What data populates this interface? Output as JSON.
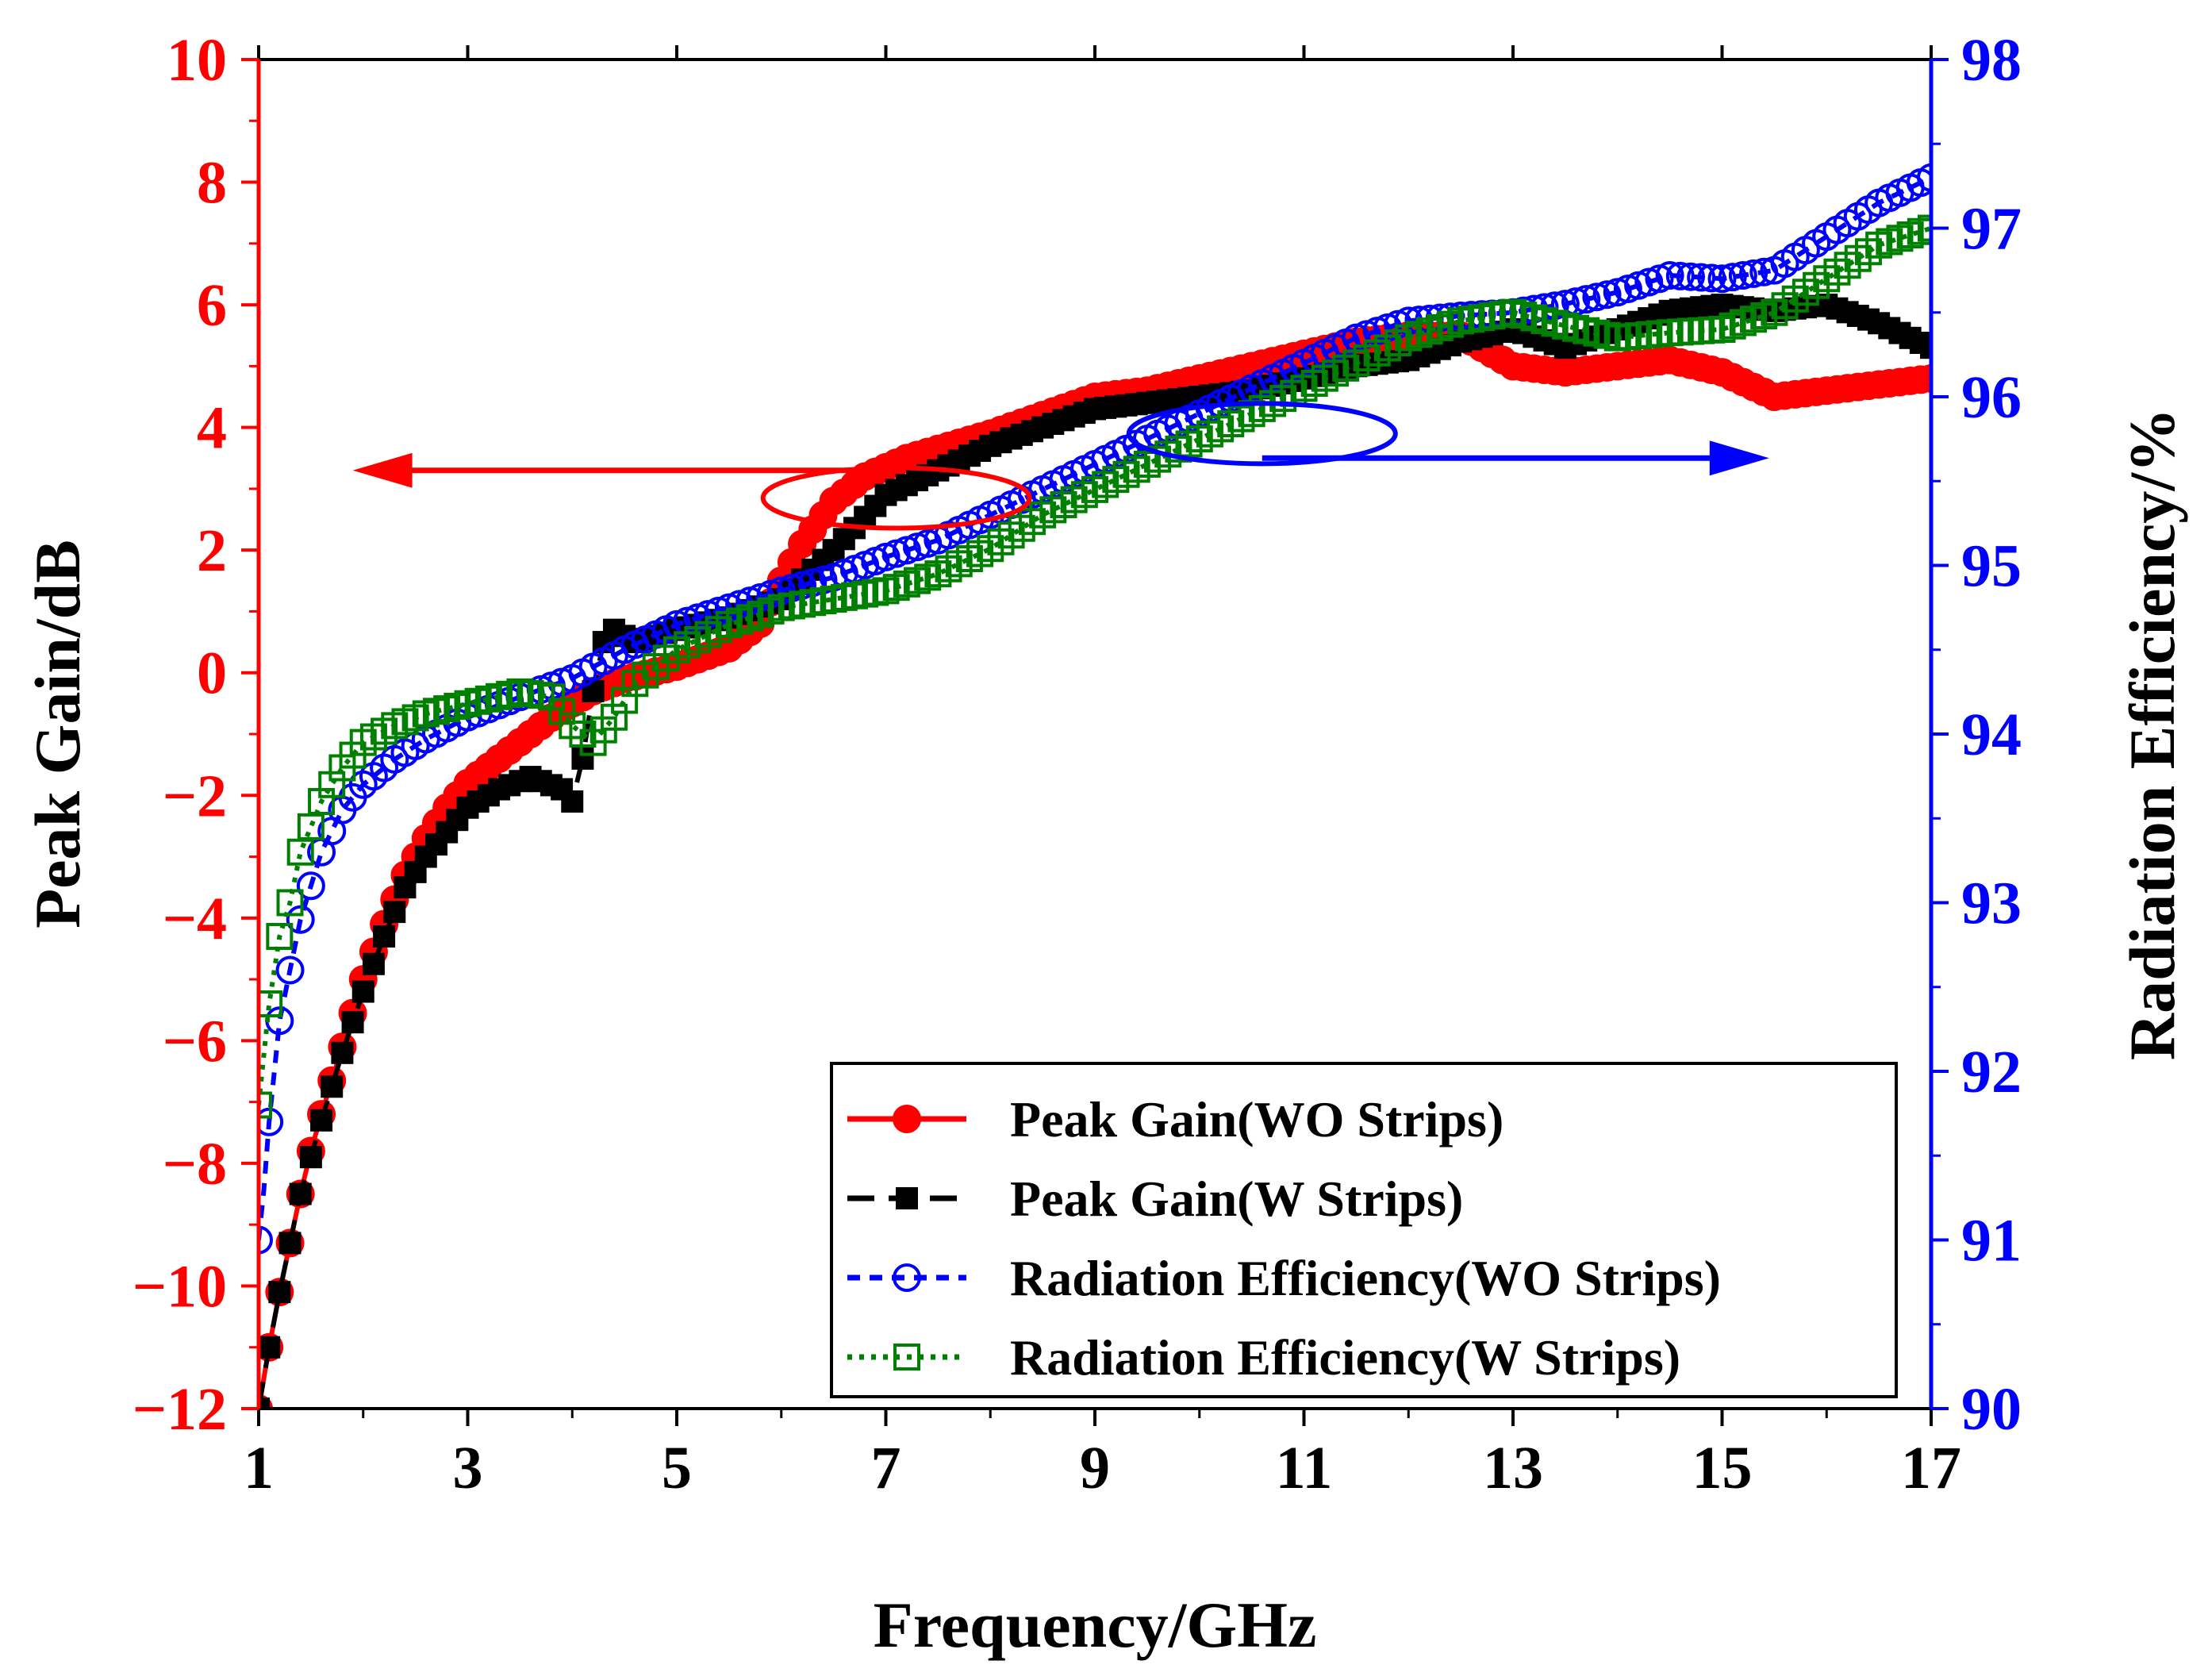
{
  "chart_data": {
    "type": "line",
    "xlabel": "Frequency/GHz",
    "ylabel_left": "Peak Gain/dB",
    "ylabel_right": "Radiation Efficiency/%",
    "xlim": [
      1,
      17
    ],
    "ylim_left": [
      -12,
      10
    ],
    "ylim_right": [
      90,
      98
    ],
    "x_ticks": [
      1,
      3,
      5,
      7,
      9,
      11,
      13,
      15,
      17
    ],
    "y_left_ticks": [
      -12,
      -10,
      -8,
      -6,
      -4,
      -2,
      0,
      2,
      4,
      6,
      8,
      10
    ],
    "y_right_ticks": [
      90,
      91,
      92,
      93,
      94,
      95,
      96,
      97,
      98
    ],
    "x_tick_labels": [
      "1",
      "3",
      "5",
      "7",
      "9",
      "11",
      "13",
      "15",
      "17"
    ],
    "y_left_tick_labels": [
      "−12",
      "−10",
      "−8",
      "−6",
      "−4",
      "−2",
      "0",
      "2",
      "4",
      "6",
      "8",
      "10"
    ],
    "y_right_tick_labels": [
      "90",
      "91",
      "92",
      "93",
      "94",
      "95",
      "96",
      "97",
      "98"
    ],
    "colors": {
      "left_axis": "#ff0000",
      "right_axis": "#0000ff",
      "frame": "#000000"
    },
    "annotations": [
      {
        "type": "ellipse-arrow",
        "axis": "left",
        "direction": "left",
        "color": "#ff0000"
      },
      {
        "type": "ellipse-arrow",
        "axis": "right",
        "direction": "right",
        "color": "#0000ff"
      }
    ],
    "legend_position": "bottom-right",
    "series": [
      {
        "name": "Peak Gain(WO Strips)",
        "axis": "left",
        "color": "#ff0000",
        "marker": "filled-circle",
        "line": "solid",
        "x": [
          1.0,
          1.1,
          1.2,
          1.3,
          1.4,
          1.5,
          1.6,
          1.8,
          2.0,
          2.2,
          2.4,
          2.6,
          2.8,
          3.0,
          3.3,
          3.6,
          3.9,
          4.2,
          4.5,
          5.0,
          5.5,
          5.8,
          6.0,
          6.2,
          6.5,
          6.8,
          7.2,
          7.6,
          8.0,
          8.5,
          9.0,
          9.5,
          10.0,
          10.5,
          11.0,
          11.5,
          12.0,
          12.5,
          13.0,
          13.5,
          14.0,
          14.5,
          15.0,
          15.5,
          16.0,
          16.5,
          17.0
        ],
        "y": [
          -12.0,
          -11.0,
          -10.1,
          -9.3,
          -8.5,
          -7.8,
          -7.2,
          -6.1,
          -5.0,
          -4.1,
          -3.3,
          -2.7,
          -2.2,
          -1.8,
          -1.4,
          -1.0,
          -0.6,
          -0.3,
          -0.1,
          0.1,
          0.4,
          0.8,
          1.5,
          2.1,
          2.8,
          3.2,
          3.5,
          3.7,
          3.9,
          4.2,
          4.5,
          4.6,
          4.8,
          5.0,
          5.2,
          5.4,
          5.5,
          5.5,
          5.0,
          4.9,
          5.0,
          5.1,
          4.9,
          4.5,
          4.6,
          4.7,
          4.8
        ]
      },
      {
        "name": "Peak Gain(W Strips)",
        "axis": "left",
        "color": "#000000",
        "marker": "filled-square",
        "line": "dashed",
        "x": [
          1.0,
          1.1,
          1.2,
          1.3,
          1.4,
          1.5,
          1.6,
          1.8,
          2.0,
          2.2,
          2.4,
          2.6,
          2.8,
          3.0,
          3.3,
          3.6,
          3.9,
          4.0,
          4.1,
          4.2,
          4.3,
          4.4,
          4.6,
          5.0,
          5.5,
          6.0,
          6.5,
          7.0,
          7.5,
          8.0,
          8.5,
          9.0,
          9.5,
          10.0,
          10.5,
          11.0,
          11.5,
          12.0,
          12.5,
          13.0,
          13.5,
          14.0,
          14.5,
          15.0,
          15.5,
          16.0,
          16.5,
          17.0
        ],
        "y": [
          -12.0,
          -11.0,
          -10.1,
          -9.3,
          -8.5,
          -7.9,
          -7.3,
          -6.2,
          -5.2,
          -4.3,
          -3.5,
          -3.0,
          -2.6,
          -2.2,
          -1.9,
          -1.7,
          -1.9,
          -2.1,
          -1.4,
          -0.3,
          0.5,
          0.7,
          0.5,
          0.7,
          0.9,
          1.2,
          2.0,
          2.9,
          3.3,
          3.7,
          4.0,
          4.3,
          4.4,
          4.5,
          4.6,
          4.8,
          5.0,
          5.1,
          5.4,
          5.6,
          5.3,
          5.6,
          5.9,
          6.0,
          5.9,
          6.0,
          5.7,
          5.3
        ]
      },
      {
        "name": "Radiation Efficiency(WO Strips)",
        "axis": "right",
        "color": "#0000ff",
        "marker": "open-circle",
        "line": "short-dash",
        "x": [
          1.0,
          1.05,
          1.1,
          1.15,
          1.2,
          1.3,
          1.4,
          1.5,
          1.6,
          1.8,
          2.0,
          2.3,
          2.6,
          3.0,
          3.5,
          4.0,
          4.5,
          5.0,
          5.5,
          6.0,
          6.5,
          7.0,
          7.5,
          8.0,
          8.5,
          9.0,
          9.5,
          10.0,
          10.5,
          11.0,
          11.5,
          12.0,
          12.5,
          13.0,
          13.5,
          14.0,
          14.5,
          15.0,
          15.5,
          16.0,
          16.5,
          17.0
        ],
        "y": [
          91.0,
          91.3,
          91.7,
          92.0,
          92.3,
          92.6,
          92.9,
          93.1,
          93.3,
          93.55,
          93.7,
          93.85,
          93.97,
          94.1,
          94.22,
          94.33,
          94.5,
          94.65,
          94.75,
          94.85,
          94.93,
          95.05,
          95.15,
          95.3,
          95.45,
          95.6,
          95.75,
          95.9,
          96.05,
          96.2,
          96.35,
          96.45,
          96.48,
          96.5,
          96.55,
          96.62,
          96.72,
          96.7,
          96.75,
          96.95,
          97.15,
          97.3
        ]
      },
      {
        "name": "Radiation Efficiency(W Strips)",
        "axis": "right",
        "color": "#008000",
        "marker": "open-square",
        "line": "dotted",
        "x": [
          1.0,
          1.05,
          1.1,
          1.15,
          1.2,
          1.3,
          1.4,
          1.5,
          1.6,
          1.8,
          2.0,
          2.3,
          2.6,
          3.0,
          3.5,
          3.8,
          4.0,
          4.2,
          4.4,
          4.6,
          5.0,
          5.5,
          6.0,
          6.5,
          7.0,
          7.5,
          8.0,
          8.5,
          9.0,
          9.5,
          10.0,
          10.5,
          11.0,
          11.5,
          12.0,
          12.5,
          13.0,
          13.5,
          14.0,
          14.5,
          15.0,
          15.5,
          16.0,
          16.5,
          17.0
        ],
        "y": [
          91.8,
          92.1,
          92.4,
          92.6,
          92.8,
          93.0,
          93.3,
          93.45,
          93.6,
          93.8,
          93.95,
          94.05,
          94.12,
          94.18,
          94.25,
          94.22,
          94.05,
          93.95,
          94.1,
          94.3,
          94.5,
          94.65,
          94.75,
          94.8,
          94.85,
          94.95,
          95.1,
          95.3,
          95.45,
          95.6,
          95.75,
          95.9,
          96.05,
          96.2,
          96.35,
          96.45,
          96.5,
          96.42,
          96.35,
          96.38,
          96.4,
          96.5,
          96.7,
          96.9,
          97.0
        ]
      }
    ]
  }
}
